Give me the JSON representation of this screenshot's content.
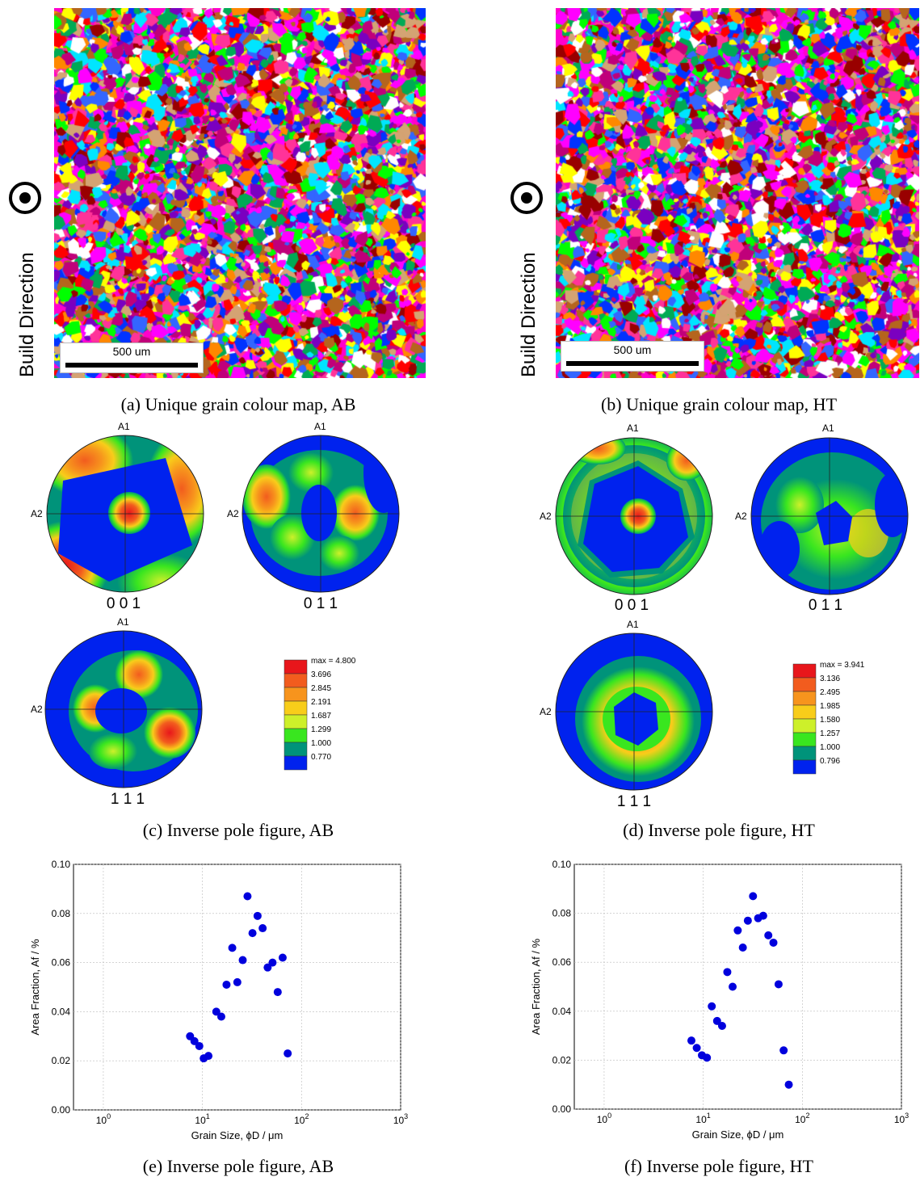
{
  "build_direction_label": "Build Direction",
  "maps": [
    {
      "scale_label": "500 um",
      "caption": "(a) Unique grain colour map, AB",
      "seed": 11
    },
    {
      "scale_label": "500 um",
      "caption": "(b) Unique grain colour map, HT",
      "seed": 37
    }
  ],
  "pole_figures": [
    {
      "caption": "(c) Inverse pole figure, AB",
      "axis_a1": "A1",
      "axis_a2": "A2",
      "labels": [
        "0 0 1",
        "0 1 1",
        "1 1 1"
      ],
      "legend": [
        "max = 4.800",
        "3.696",
        "2.845",
        "2.191",
        "1.687",
        "1.299",
        "1.000",
        "0.770"
      ]
    },
    {
      "caption": "(d) Inverse pole figure, HT",
      "axis_a1": "A1",
      "axis_a2": "A2",
      "labels": [
        "0 0 1",
        "0 1 1",
        "1 1 1"
      ],
      "legend": [
        "max = 3.941",
        "3.136",
        "2.495",
        "1.985",
        "1.580",
        "1.257",
        "1.000",
        "0.796"
      ]
    }
  ],
  "legend_colors": [
    "#e8161b",
    "#f25c1e",
    "#f7941d",
    "#f8cd1a",
    "#cdf02a",
    "#39e61f",
    "#00937a",
    "#0022ee"
  ],
  "chart_data": [
    {
      "type": "scatter",
      "caption": "(e) Inverse pole figure, AB",
      "xlabel": "Grain Size, ϕD / μm",
      "ylabel": "Area Fraction, Af / %",
      "xscale": "log",
      "xlim": [
        0.5,
        1000
      ],
      "ylim": [
        0,
        0.1
      ],
      "yticks": [
        "0.00",
        "0.02",
        "0.04",
        "0.06",
        "0.08",
        "0.10"
      ],
      "xticks": [
        {
          "base": "10",
          "exp": "0"
        },
        {
          "base": "10",
          "exp": "1"
        },
        {
          "base": "10",
          "exp": "2"
        },
        {
          "base": "10",
          "exp": "3"
        }
      ],
      "grid": true,
      "color": "#0000dd",
      "points": [
        [
          7.5,
          0.03
        ],
        [
          8.3,
          0.028
        ],
        [
          9.3,
          0.026
        ],
        [
          10.3,
          0.021
        ],
        [
          11.5,
          0.022
        ],
        [
          13.8,
          0.04
        ],
        [
          15.5,
          0.038
        ],
        [
          17.5,
          0.051
        ],
        [
          20,
          0.066
        ],
        [
          22.5,
          0.052
        ],
        [
          25.5,
          0.061
        ],
        [
          28.5,
          0.087
        ],
        [
          32,
          0.072
        ],
        [
          36,
          0.079
        ],
        [
          40.5,
          0.074
        ],
        [
          45.5,
          0.058
        ],
        [
          51,
          0.06
        ],
        [
          57.5,
          0.048
        ],
        [
          64.5,
          0.062
        ],
        [
          72.5,
          0.023
        ]
      ]
    },
    {
      "type": "scatter",
      "caption": "(f) Inverse pole figure, HT",
      "xlabel": "Grain Size, ϕD / μm",
      "ylabel": "Area Fraction, Af / %",
      "xscale": "log",
      "xlim": [
        0.5,
        1000
      ],
      "ylim": [
        0,
        0.1
      ],
      "yticks": [
        "0.00",
        "0.02",
        "0.04",
        "0.06",
        "0.08",
        "0.10"
      ],
      "xticks": [
        {
          "base": "10",
          "exp": "0"
        },
        {
          "base": "10",
          "exp": "1"
        },
        {
          "base": "10",
          "exp": "2"
        },
        {
          "base": "10",
          "exp": "3"
        }
      ],
      "grid": true,
      "color": "#0000dd",
      "points": [
        [
          7.6,
          0.028
        ],
        [
          8.6,
          0.025
        ],
        [
          9.7,
          0.022
        ],
        [
          10.9,
          0.021
        ],
        [
          12.2,
          0.042
        ],
        [
          13.8,
          0.036
        ],
        [
          15.5,
          0.034
        ],
        [
          17.5,
          0.056
        ],
        [
          19.8,
          0.05
        ],
        [
          22.3,
          0.073
        ],
        [
          25.1,
          0.066
        ],
        [
          28.2,
          0.077
        ],
        [
          31.8,
          0.087
        ],
        [
          35.8,
          0.078
        ],
        [
          40.3,
          0.079
        ],
        [
          45.4,
          0.071
        ],
        [
          51.1,
          0.068
        ],
        [
          57.6,
          0.051
        ],
        [
          64.8,
          0.024
        ],
        [
          73,
          0.01
        ]
      ]
    }
  ]
}
